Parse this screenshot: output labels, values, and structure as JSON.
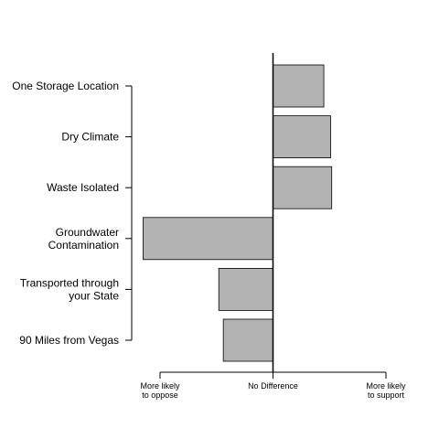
{
  "chart_data": {
    "type": "bar",
    "orientation": "horizontal",
    "title": "",
    "xlabel": "",
    "ylabel": "",
    "categories": [
      "One Storage Location",
      "Dry Climate",
      "Waste Isolated",
      "Groundwater\nContamination",
      "Transported through\nyour State",
      "90 Miles from Vegas"
    ],
    "values": [
      0.45,
      0.51,
      0.52,
      -1.15,
      -0.48,
      -0.44
    ],
    "xlim": [
      -1,
      1
    ],
    "x_ticks": [
      {
        "value": -1,
        "label": "More likely\nto oppose"
      },
      {
        "value": 0,
        "label": "No Difference"
      },
      {
        "value": 1,
        "label": "More likely\nto support"
      }
    ],
    "grid": false,
    "bar_color": "#b3b3b3",
    "legend": "none"
  }
}
